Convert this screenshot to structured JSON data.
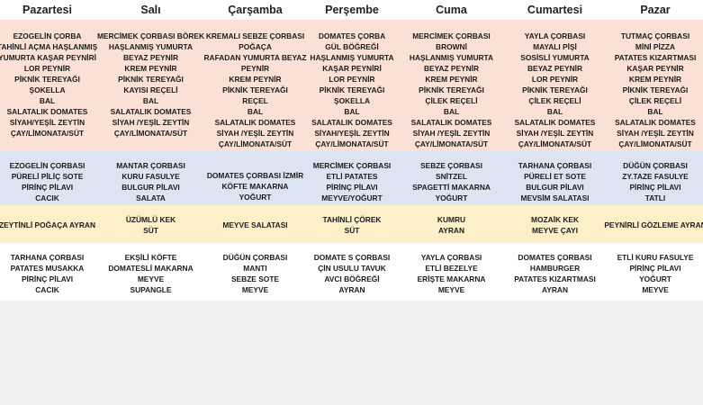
{
  "days": [
    "Pazartesi",
    "Salı",
    "Çarşamba",
    "Perşembe",
    "Cuma",
    "Cumartesi",
    "Pazar"
  ],
  "breakfast": [
    [
      "EZOGELİN ÇORBA",
      "TAHİNLİ AÇMA HAŞLANMIŞ",
      "YUMURTA KAŞAR PEYNİRİ",
      "LOR PEYNİR",
      "PİKNİK TEREYAĞI",
      "ŞOKELLA",
      "BAL",
      "SALATALIK DOMATES",
      "SİYAH/YEŞİL ZEYTİN",
      "ÇAY/LİMONATA/SÜT"
    ],
    [
      "MERCİMEK ÇORBASI BÖREK",
      "HAŞLANMIŞ YUMURTA",
      "BEYAZ PEYNİR",
      "KREM PEYNİR",
      "PİKNİK TEREYAĞI",
      "KAYISI REÇELİ",
      "BAL",
      "SALATALIK DOMATES",
      "SİYAH /YEŞİL ZEYTİN",
      "ÇAY/LİMONATA/SÜT"
    ],
    [
      "KREMALI SEBZE ÇORBASI",
      "POĞAÇA",
      "RAFADAN  YUMURTA BEYAZ",
      "PEYNİR",
      "KREM PEYNİR",
      "PİKNİK TEREYAĞI",
      "REÇEL",
      "BAL",
      "SALATALIK DOMATES",
      "SİYAH /YEŞİL ZEYTİN",
      "ÇAY/LİMONATA/SÜT"
    ],
    [
      "DOMATES ÇORBA",
      "GÜL BÖĞREĞİ",
      "HAŞLANMIŞ YUMURTA",
      "KAŞAR PEYNİRİ",
      "LOR PEYNİR",
      "PİKNİK TEREYAĞI",
      "ŞOKELLA",
      "BAL",
      "SALATALIK DOMATES",
      "SİYAH/YEŞİL ZEYTİN",
      "ÇAY/LİMONATA/SÜT"
    ],
    [
      "MERCİMEK ÇORBASI",
      "BROWNİ",
      "HAŞLANMIŞ YUMURTA",
      "BEYAZ PEYNİR",
      "KREM PEYNİR",
      "PİKNİK TEREYAĞI",
      "ÇİLEK REÇELİ",
      "BAL",
      "SALATALIK DOMATES",
      "SİYAH /YEŞİL ZEYTİN",
      "ÇAY/LİMONATA/SÜT"
    ],
    [
      "YAYLA ÇORBASI",
      "MAYALI PİŞİ",
      "SOSİSLİ YUMURTA",
      "BEYAZ PEYNİR",
      "LOR PEYNİR",
      "PİKNİK TEREYAĞI",
      "ÇİLEK REÇELİ",
      "BAL",
      "SALATALIK DOMATES",
      "SİYAH /YEŞİL ZEYTİN",
      "ÇAY/LİMONATA/SÜT"
    ],
    [
      "TUTMAÇ ÇORBASI",
      "MİNİ PİZZA",
      "PATATES KIZARTMASI",
      "KAŞAR PEYNİR",
      "KREM PEYNİR",
      "PİKNİK TEREYAĞI",
      "ÇİLEK REÇELİ",
      "BAL",
      "SALATALIK DOMATES",
      "SİYAH /YEŞİL ZEYTİN",
      "ÇAY/LİMONATA/SÜT"
    ]
  ],
  "lunch": [
    [
      "EZOGELİN ÇORBASI",
      "PÜRELİ PİLİÇ SOTE",
      "PİRİNÇ PİLAVI",
      "CACIK"
    ],
    [
      "MANTAR ÇORBASI",
      "KURU FASULYE",
      "BULGUR PİLAVI",
      "SALATA"
    ],
    [
      "DOMATES ÇORBASI    İZMİR",
      "KÖFTE          MAKARNA",
      "YOĞURT"
    ],
    [
      "MERCİMEK  ÇORBASI",
      "ETLİ PATATES",
      "PİRİNÇ PİLAVI",
      "MEYVE/YOĞURT"
    ],
    [
      "SEBZE  ÇORBASI",
      "SNİTZEL",
      "SPAGETTİ  MAKARNA",
      "YOĞURT"
    ],
    [
      "TARHANA ÇORBASI",
      "PÜRELİ ET SOTE",
      "BULGUR PİLAVI",
      "MEVSİM SALATASI"
    ],
    [
      "DÜĞÜN  ÇORBASI",
      "ZY.TAZE  FASULYE",
      "PİRİNÇ PİLAVI",
      "TATLI"
    ]
  ],
  "snack": [
    [
      "ZEYTİNLİ POĞAÇA      AYRAN"
    ],
    [
      "ÜZÜMLÜ KEK",
      "SÜT"
    ],
    [
      "MEYVE SALATASI"
    ],
    [
      "TAHİNLİ ÇÖREK",
      "SÜT"
    ],
    [
      "KUMRU",
      "AYRAN"
    ],
    [
      "MOZAİK KEK",
      "MEYVE ÇAYI"
    ],
    [
      "PEYNİRLİ GÖZLEME AYRAN"
    ]
  ],
  "dinner": [
    [
      "TARHANA ÇORBASI",
      "PATATES MUSAKKA",
      "PİRİNÇ PİLAVI",
      "CACIK"
    ],
    [
      "EKŞİLİ KÖFTE",
      "DOMATESLİ MAKARNA",
      "MEYVE",
      "SUPANGLE"
    ],
    [
      "DÜĞÜN ÇORBASI",
      "MANTI",
      "SEBZE SOTE",
      "MEYVE"
    ],
    [
      "DOMATE S ÇORBASI",
      "ÇİN USULU TAVUK",
      "AVCI BÖĞREĞİ",
      "AYRAN"
    ],
    [
      "YAYLA ÇORBASI",
      "ETLİ BEZELYE",
      "ERİŞTE MAKARNA",
      "MEYVE"
    ],
    [
      "DOMATES ÇORBASI",
      "HAMBURGER",
      "PATATES KIZARTMASI",
      "AYRAN"
    ],
    [
      "ETLİ KURU FASULYE",
      "PİRİNÇ  PİLAVI",
      "YOĞURT",
      "MEYVE"
    ]
  ],
  "colors": {
    "breakfast_band": "#fbe1d5",
    "lunch_band": "#dce3f1",
    "snack_band": "#fdf0c8",
    "dinner_band": "#ffffff"
  }
}
